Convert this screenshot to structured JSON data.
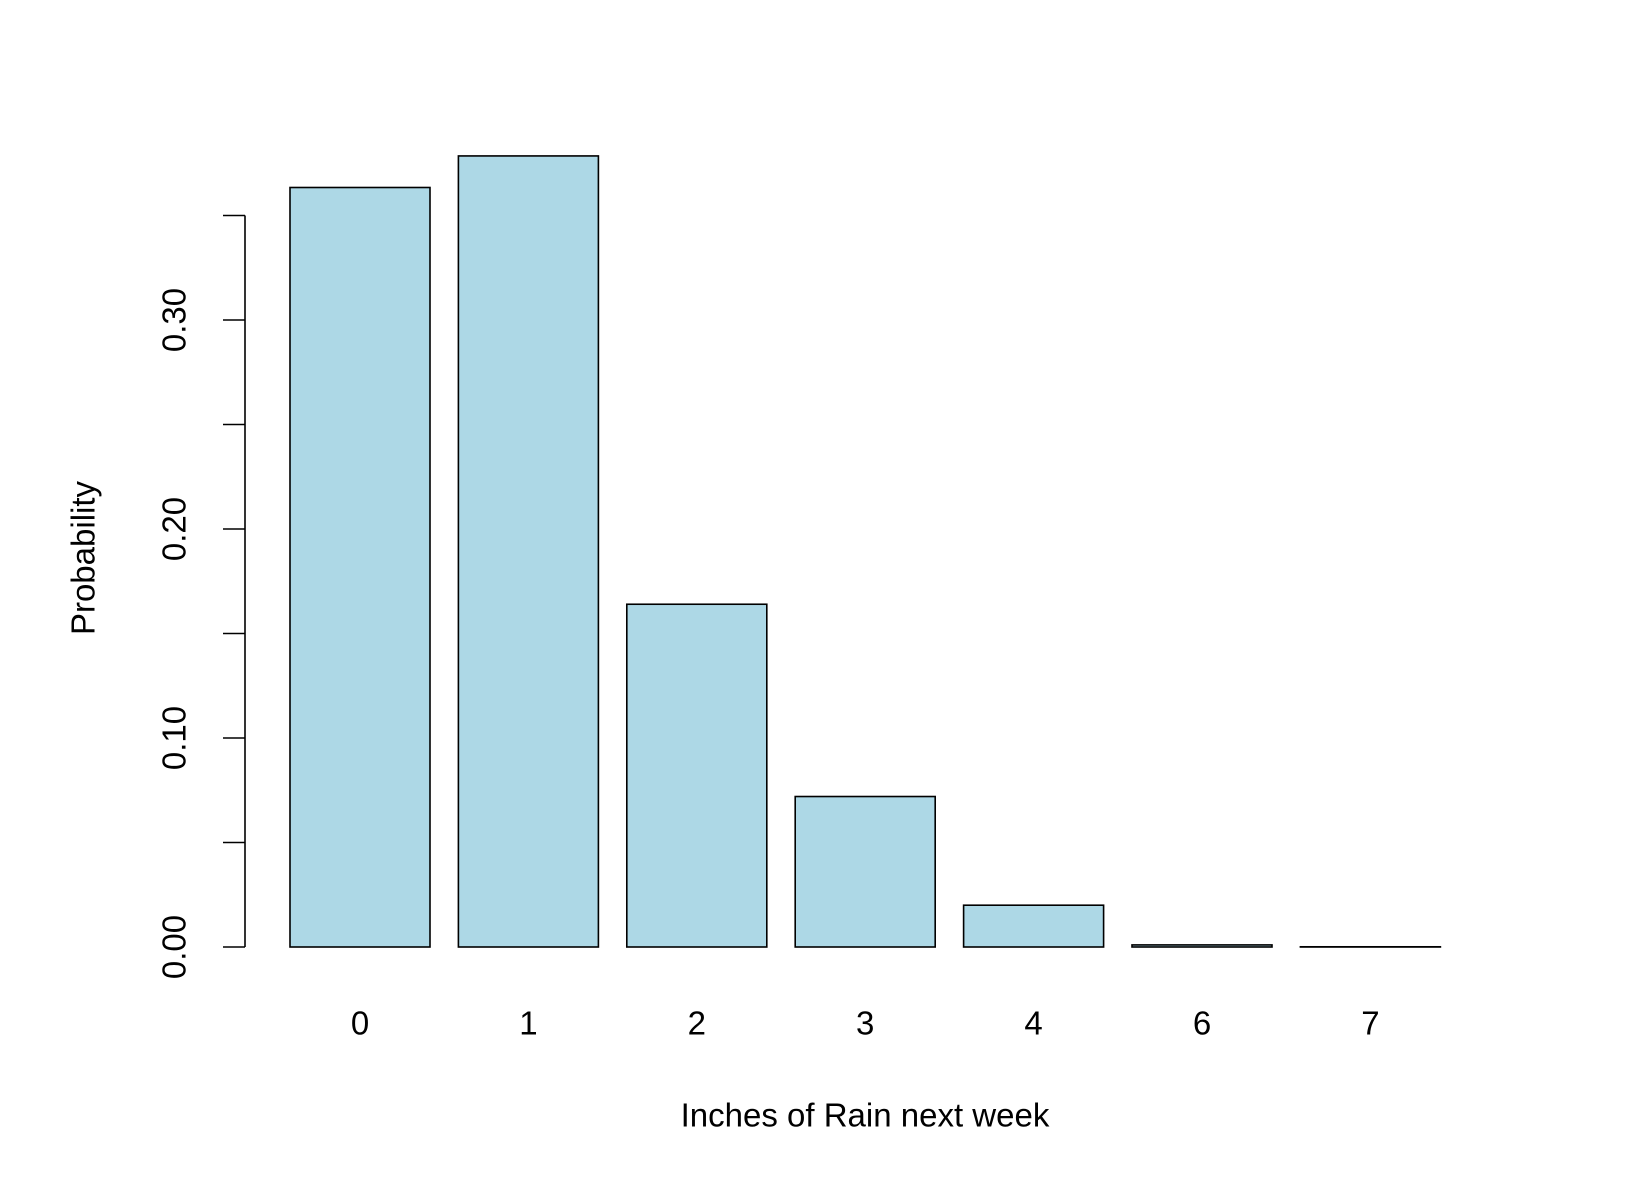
{
  "chart_data": {
    "type": "bar",
    "x_label": "Inches of Rain next week",
    "y_label": "Probability",
    "categories": [
      "0",
      "1",
      "2",
      "3",
      "4",
      "6",
      "7"
    ],
    "values": [
      0.3634,
      0.3785,
      0.164,
      0.072,
      0.02,
      0.001,
      0.0001
    ],
    "color": "#add8e6",
    "ylim": [
      0,
      0.39
    ],
    "yticks": [
      {
        "value": 0,
        "label": "0.00"
      },
      {
        "value": 0.1,
        "label": "0.10"
      },
      {
        "value": 0.2,
        "label": "0.20"
      },
      {
        "value": 0.3,
        "label": "0.30"
      }
    ],
    "yminor_ticks": [
      0.05,
      0.15,
      0.25,
      0.35
    ],
    "grid": false
  }
}
